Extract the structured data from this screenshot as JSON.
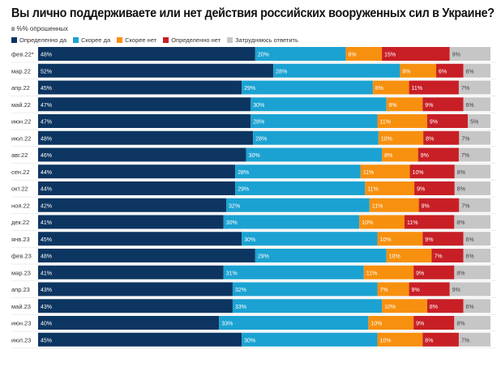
{
  "chart_data": {
    "type": "bar",
    "orientation": "horizontal",
    "stacked": true,
    "title": "Вы лично поддерживаете или нет действия российских вооруженных сил в Украине?",
    "subtitle": "в %% опрошенных",
    "legend_position": "top-left",
    "categories": [
      "фев.22*",
      "мар.22",
      "апр.22",
      "май.22",
      "июн.22",
      "июл.22",
      "авг.22",
      "сен.22",
      "окт.22",
      "ноя.22",
      "дек.22",
      "янв.23",
      "фев.23",
      "мар.23",
      "апр.23",
      "май.23",
      "июн.23",
      "июл.23"
    ],
    "series": [
      {
        "name": "Определенно да",
        "color": "#0d3561",
        "values": [
          48,
          52,
          45,
          47,
          47,
          48,
          46,
          44,
          44,
          42,
          41,
          45,
          48,
          41,
          43,
          43,
          40,
          45
        ]
      },
      {
        "name": "Скорее да",
        "color": "#1ba2d2",
        "values": [
          20,
          28,
          29,
          30,
          28,
          28,
          30,
          28,
          29,
          32,
          30,
          30,
          29,
          31,
          32,
          33,
          33,
          30
        ]
      },
      {
        "name": "Скорее нет",
        "color": "#f7900e",
        "values": [
          8,
          8,
          8,
          8,
          11,
          10,
          8,
          11,
          11,
          11,
          10,
          10,
          10,
          11,
          7,
          10,
          10,
          10
        ]
      },
      {
        "name": "Определенно нет",
        "color": "#c81f26",
        "values": [
          15,
          6,
          11,
          9,
          9,
          8,
          9,
          10,
          9,
          9,
          11,
          9,
          7,
          9,
          9,
          8,
          9,
          8
        ]
      },
      {
        "name": "Затрудняюсь ответить",
        "color": "#c6c6c6",
        "values": [
          9,
          6,
          7,
          6,
          5,
          7,
          7,
          8,
          8,
          7,
          8,
          6,
          6,
          8,
          9,
          6,
          8,
          7
        ]
      }
    ],
    "value_suffix": "%",
    "grid": false
  }
}
